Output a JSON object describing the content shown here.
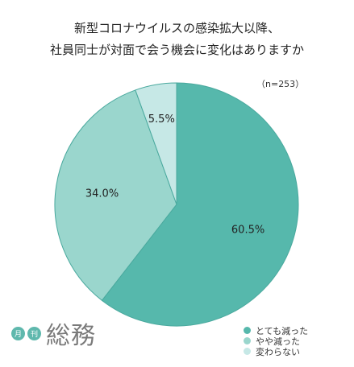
{
  "chart_data": {
    "type": "pie",
    "title": [
      "新型コロナウイルスの感染拡大以降、",
      "社員同士が対面で会う機会に変化はありますか"
    ],
    "note": "（n=253）",
    "slices": [
      {
        "label": "とても減った",
        "value": 60.5,
        "display": "60.5%",
        "color": "#56b8ac"
      },
      {
        "label": "やや減った",
        "value": 34.0,
        "display": "34.0%",
        "color": "#9ad6cd"
      },
      {
        "label": "変わらない",
        "value": 5.5,
        "display": "5.5%",
        "color": "#c6e8e6"
      }
    ],
    "legend_position": "bottom-right"
  },
  "logo": {
    "badge1": "月",
    "badge2": "刊",
    "text": "総務"
  }
}
